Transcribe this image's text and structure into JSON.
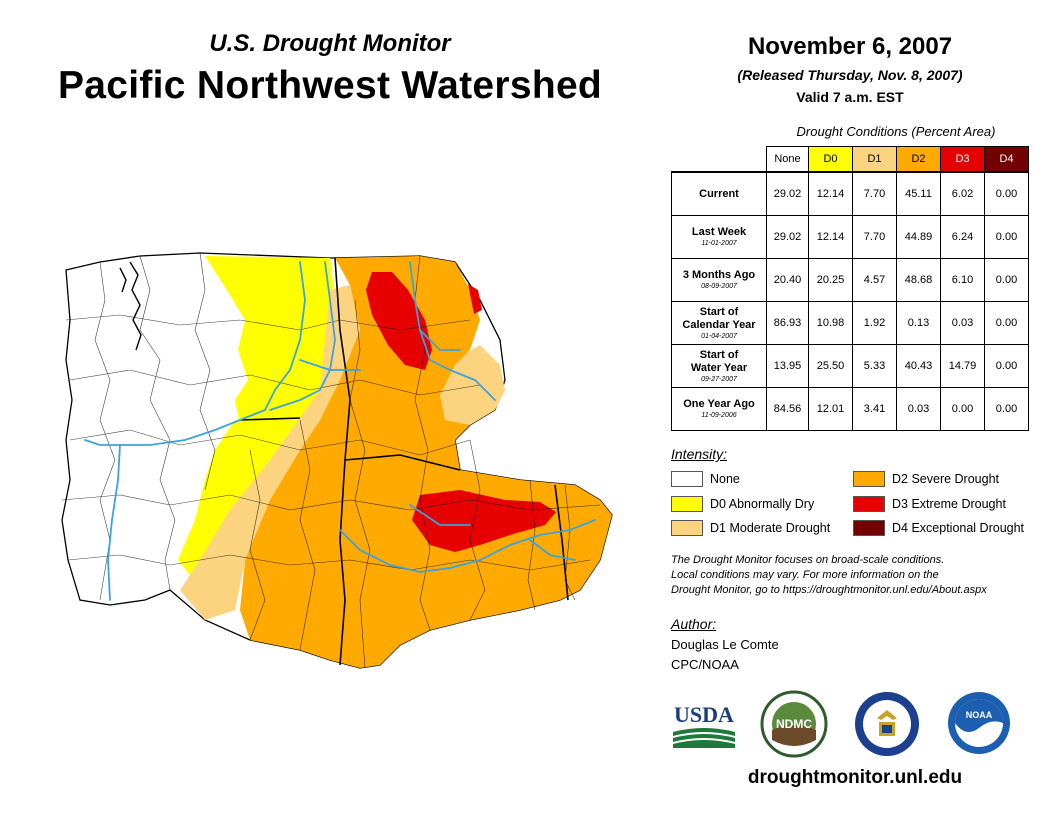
{
  "header": {
    "subtitle": "U.S. Drought Monitor",
    "title": "Pacific Northwest Watershed",
    "date": "November 6, 2007",
    "released": "(Released Thursday, Nov. 8, 2007)",
    "valid": "Valid 7 a.m. EST"
  },
  "table": {
    "caption": "Drought Conditions (Percent Area)",
    "columns": [
      "None",
      "D0",
      "D1",
      "D2",
      "D3",
      "D4"
    ],
    "rows": [
      {
        "label": "Current",
        "label2": "",
        "date": "",
        "values": [
          "29.02",
          "12.14",
          "7.70",
          "45.11",
          "6.02",
          "0.00"
        ]
      },
      {
        "label": "Last Week",
        "label2": "",
        "date": "11-01-2007",
        "values": [
          "29.02",
          "12.14",
          "7.70",
          "44.89",
          "6.24",
          "0.00"
        ]
      },
      {
        "label": "3 Months Ago",
        "label2": "",
        "date": "08-09-2007",
        "values": [
          "20.40",
          "20.25",
          "4.57",
          "48.68",
          "6.10",
          "0.00"
        ]
      },
      {
        "label": "Start of",
        "label2": "Calendar Year",
        "date": "01-04-2007",
        "values": [
          "86.93",
          "10.98",
          "1.92",
          "0.13",
          "0.03",
          "0.00"
        ]
      },
      {
        "label": "Start of",
        "label2": "Water Year",
        "date": "09-27-2007",
        "values": [
          "13.95",
          "25.50",
          "5.33",
          "40.43",
          "14.79",
          "0.00"
        ]
      },
      {
        "label": "One Year Ago",
        "label2": "",
        "date": "11-09-2006",
        "values": [
          "84.56",
          "12.01",
          "3.41",
          "0.03",
          "0.00",
          "0.00"
        ]
      }
    ]
  },
  "legend": {
    "heading": "Intensity:",
    "items": [
      {
        "label": "None",
        "color": "#ffffff"
      },
      {
        "label": "D0 Abnormally Dry",
        "color": "#ffff00"
      },
      {
        "label": "D1 Moderate Drought",
        "color": "#fcd37f"
      },
      {
        "label": "D2 Severe Drought",
        "color": "#ffaa00"
      },
      {
        "label": "D3 Extreme Drought",
        "color": "#e60000"
      },
      {
        "label": "D4 Exceptional Drought",
        "color": "#730000"
      }
    ]
  },
  "colors": {
    "none": "#ffffff",
    "d0": "#ffff00",
    "d1": "#fcd37f",
    "d2": "#ffaa00",
    "d3": "#e60000",
    "d4": "#730000",
    "river": "#3ba3dd"
  },
  "note": {
    "line1": "The Drought Monitor focuses on broad-scale conditions.",
    "line2": "Local conditions may vary. For more information on the",
    "line3": "Drought Monitor, go to https://droughtmonitor.unl.edu/About.aspx"
  },
  "author": {
    "heading": "Author:",
    "name": "Douglas Le Comte",
    "org": "CPC/NOAA"
  },
  "logos": {
    "usda": "USDA",
    "ndmc": "NDMC",
    "noaa": "NOAA"
  },
  "footer": {
    "url": "droughtmonitor.unl.edu"
  }
}
